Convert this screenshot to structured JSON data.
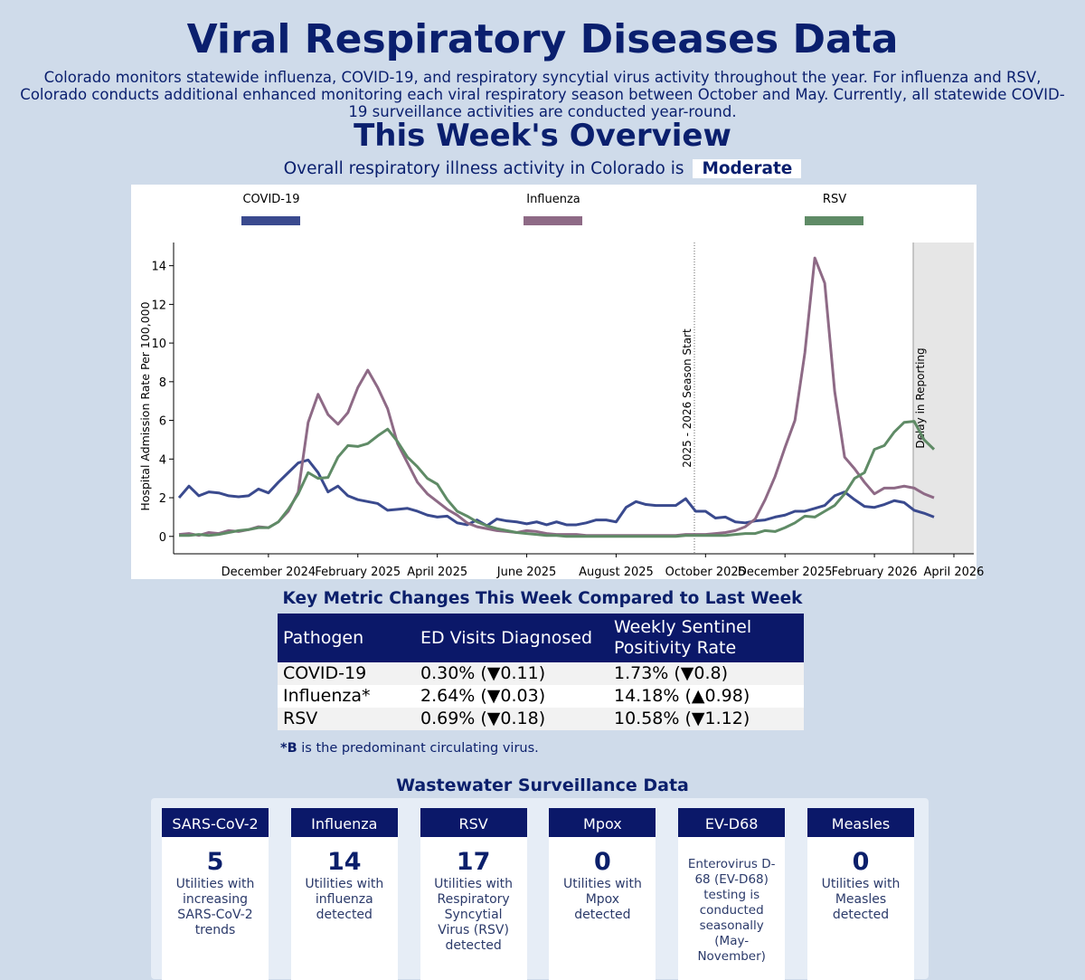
{
  "header": {
    "title": "Viral Respiratory Diseases Data",
    "description": "Colorado monitors statewide influenza, COVID-19, and respiratory syncytial virus activity throughout the year. For influenza and RSV, Colorado conducts additional enhanced monitoring each viral respiratory season between October and May. Currently, all statewide COVID-19 surveillance activities are conducted year-round."
  },
  "overview": {
    "title": "This Week's Overview",
    "activity_text": "Overall respiratory illness activity in Colorado is",
    "activity_level": "Moderate"
  },
  "chart_data": {
    "type": "line",
    "y_label": "Hospital Admission Rate Per 100,000",
    "annotations": [
      "2025 - 2026 Season Start",
      "Delay in Reporting"
    ],
    "categories": [
      null,
      null,
      null,
      null,
      null,
      null,
      null,
      null,
      null,
      "December 2024",
      null,
      null,
      null,
      null,
      null,
      null,
      null,
      null,
      "February 2025",
      null,
      null,
      null,
      null,
      null,
      null,
      null,
      "April 2025",
      null,
      null,
      null,
      null,
      null,
      null,
      null,
      null,
      "June 2025",
      null,
      null,
      null,
      null,
      null,
      null,
      null,
      null,
      "August 2025",
      null,
      null,
      null,
      null,
      null,
      null,
      null,
      null,
      "October 2025",
      null,
      null,
      null,
      null,
      null,
      null,
      null,
      "December 2025",
      null,
      null,
      null,
      null,
      null,
      null,
      null,
      null,
      "February 2026",
      null,
      null,
      null,
      null,
      null,
      null,
      null,
      "April 2026",
      null,
      null
    ],
    "series": [
      {
        "name": "COVID-19",
        "color": "#3a4a8e",
        "values": [
          2.0,
          2.6,
          2.1,
          2.3,
          2.25,
          2.1,
          2.05,
          2.1,
          2.45,
          2.25,
          2.8,
          3.3,
          3.8,
          3.95,
          3.3,
          2.3,
          2.6,
          2.1,
          1.9,
          1.8,
          1.7,
          1.35,
          1.4,
          1.45,
          1.3,
          1.1,
          1.0,
          1.05,
          0.7,
          0.6,
          0.85,
          0.55,
          0.9,
          0.8,
          0.75,
          0.65,
          0.75,
          0.6,
          0.75,
          0.6,
          0.6,
          0.7,
          0.85,
          0.85,
          0.75,
          1.5,
          1.8,
          1.65,
          1.6,
          1.6,
          1.6,
          1.95,
          1.3,
          1.3,
          0.95,
          1.0,
          0.75,
          0.7,
          0.8,
          0.85,
          1.0,
          1.1,
          1.3,
          1.3,
          1.45,
          1.6,
          2.1,
          2.3,
          1.9,
          1.55,
          1.5,
          1.65,
          1.85,
          1.75,
          1.35,
          1.2,
          1.0,
          null,
          null,
          null,
          null
        ]
      },
      {
        "name": "Influenza",
        "color": "#8e6a86",
        "values": [
          0.1,
          0.15,
          0.05,
          0.2,
          0.15,
          0.3,
          0.25,
          0.35,
          0.5,
          0.45,
          0.75,
          1.3,
          2.3,
          5.9,
          7.35,
          6.3,
          5.8,
          6.4,
          7.7,
          8.6,
          7.7,
          6.6,
          4.8,
          3.8,
          2.8,
          2.2,
          1.8,
          1.4,
          1.1,
          0.7,
          0.5,
          0.4,
          0.3,
          0.25,
          0.2,
          0.3,
          0.25,
          0.15,
          0.1,
          0.1,
          0.1,
          0.05,
          0.05,
          0.05,
          0.05,
          0.05,
          0.05,
          0.05,
          0.05,
          0.05,
          0.05,
          0.1,
          0.1,
          0.1,
          0.15,
          0.2,
          0.3,
          0.5,
          0.9,
          1.9,
          3.1,
          4.6,
          6.0,
          9.5,
          14.4,
          13.1,
          7.5,
          4.1,
          3.5,
          2.8,
          2.2,
          2.5,
          2.5,
          2.6,
          2.5,
          2.2,
          2.0,
          null,
          null,
          null,
          null
        ]
      },
      {
        "name": "RSV",
        "color": "#5f8b66",
        "values": [
          0.05,
          0.05,
          0.1,
          0.05,
          0.1,
          0.2,
          0.3,
          0.35,
          0.45,
          0.45,
          0.75,
          1.4,
          2.2,
          3.3,
          3.0,
          3.05,
          4.1,
          4.7,
          4.65,
          4.8,
          5.2,
          5.55,
          4.9,
          4.1,
          3.6,
          3.0,
          2.7,
          1.9,
          1.3,
          1.05,
          0.75,
          0.55,
          0.4,
          0.3,
          0.2,
          0.15,
          0.1,
          0.05,
          0.05,
          0,
          0,
          0,
          0,
          0,
          0,
          0,
          0,
          0,
          0,
          0,
          0,
          0.05,
          0.05,
          0.05,
          0.05,
          0.05,
          0.1,
          0.15,
          0.15,
          0.3,
          0.25,
          0.45,
          0.7,
          1.05,
          1.0,
          1.3,
          1.6,
          2.2,
          3.0,
          3.3,
          4.5,
          4.7,
          5.4,
          5.9,
          5.95,
          5.0,
          4.5,
          null,
          null,
          null,
          null
        ]
      }
    ],
    "ylim": [
      -0.9,
      15.2
    ],
    "yticks": [
      0,
      2,
      4,
      6,
      8,
      10,
      12,
      14
    ],
    "grid": false,
    "legend": "top"
  },
  "metrics": {
    "title": "Key Metric Changes This Week Compared to Last Week",
    "table": {
      "headers": [
        "Pathogen",
        "ED Visits Diagnosed",
        "Weekly Sentinel Positivity Rate"
      ],
      "rows": [
        [
          "COVID-19",
          "0.30% (▼0.11)",
          "1.73% (▼0.8)"
        ],
        [
          "Influenza*",
          "2.64% (▼0.03)",
          "14.18% (▲0.98)"
        ],
        [
          "RSV",
          "0.69% (▼0.18)",
          "10.58% (▼1.12)"
        ]
      ]
    },
    "footnote_bold": "*B",
    "footnote": " is the predominant circulating virus."
  },
  "wastewater": {
    "title": "Wastewater Surveillance Data",
    "cards": [
      {
        "title": "SARS-CoV-2",
        "value": 5,
        "description": "Utilities with increasing SARS-CoV-2 trends"
      },
      {
        "title": "Influenza",
        "value": 14,
        "description": "Utilities with influenza detected"
      },
      {
        "title": "RSV",
        "value": 17,
        "description": "Utilities with Respiratory Syncytial Virus (RSV) detected"
      },
      {
        "title": "Mpox",
        "value": 0,
        "description": "Utilities with Mpox detected"
      },
      {
        "title": "EV-D68",
        "description": "Enterovirus D-68 (EV-D68) testing is conducted seasonally (May-November)"
      },
      {
        "title": "Measles",
        "value": 0,
        "description": "Utilities with Measles detected"
      }
    ]
  }
}
